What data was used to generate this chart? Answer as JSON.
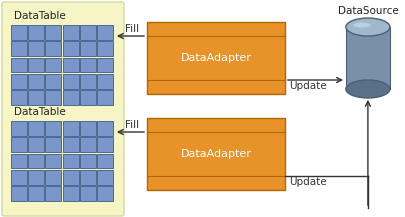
{
  "fig_width": 4.06,
  "fig_height": 2.17,
  "dpi": 100,
  "bg_color": "#ffffff",
  "dataset_bg": "#f5f5c6",
  "dataset_border": "#d8d8a0",
  "grid_cell_color": "#7b96c8",
  "grid_cell_border": "#3a5a8a",
  "adapter_color": "#e8922a",
  "adapter_border": "#b06800",
  "adapter_text": "DataAdapter",
  "datasource_text": "DataSource",
  "datatable_text": "DataTable",
  "fill_text": "Fill",
  "update_text": "Update",
  "arrow_color": "#333333",
  "text_color": "#222222",
  "font_size": 7.5,
  "adapter_font_size": 8,
  "label_font_size": 7.5,
  "cyl_body_color": "#7a8faa",
  "cyl_top_color": "#a0b8cc",
  "cyl_shadow_color": "#5a6f88",
  "cyl_border_color": "#4a5f78"
}
